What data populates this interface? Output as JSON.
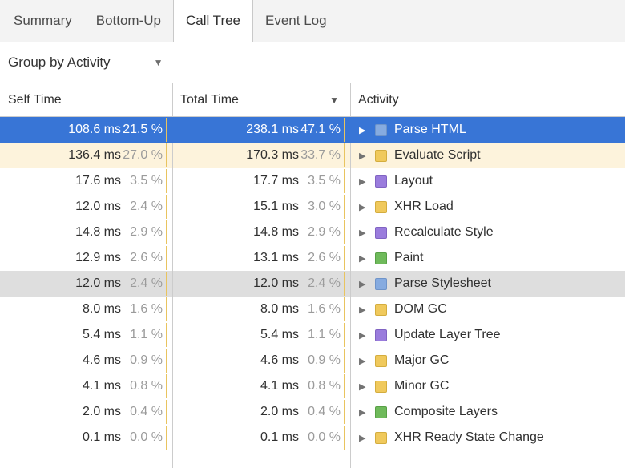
{
  "tabs": {
    "items": [
      "Summary",
      "Bottom-Up",
      "Call Tree",
      "Event Log"
    ],
    "active": "Call Tree"
  },
  "toolbar": {
    "group_by_label": "Group by Activity",
    "dropdown_arrow": "▼"
  },
  "table": {
    "columns": {
      "self_time": "Self Time",
      "total_time": "Total Time",
      "activity": "Activity"
    },
    "sort_column": "Total Time",
    "sort_arrow": "▼",
    "rows": [
      {
        "self_ms": "108.6 ms",
        "self_pct": "21.5 %",
        "total_ms": "238.1 ms",
        "total_pct": "47.1 %",
        "activity": "Parse HTML",
        "category": "loading",
        "state": "selected"
      },
      {
        "self_ms": "136.4 ms",
        "self_pct": "27.0 %",
        "total_ms": "170.3 ms",
        "total_pct": "33.7 %",
        "activity": "Evaluate Script",
        "category": "scripting",
        "state": "heavy"
      },
      {
        "self_ms": "17.6 ms",
        "self_pct": "3.5 %",
        "total_ms": "17.7 ms",
        "total_pct": "3.5 %",
        "activity": "Layout",
        "category": "rendering",
        "state": ""
      },
      {
        "self_ms": "12.0 ms",
        "self_pct": "2.4 %",
        "total_ms": "15.1 ms",
        "total_pct": "3.0 %",
        "activity": "XHR Load",
        "category": "scripting",
        "state": ""
      },
      {
        "self_ms": "14.8 ms",
        "self_pct": "2.9 %",
        "total_ms": "14.8 ms",
        "total_pct": "2.9 %",
        "activity": "Recalculate Style",
        "category": "rendering",
        "state": ""
      },
      {
        "self_ms": "12.9 ms",
        "self_pct": "2.6 %",
        "total_ms": "13.1 ms",
        "total_pct": "2.6 %",
        "activity": "Paint",
        "category": "painting",
        "state": ""
      },
      {
        "self_ms": "12.0 ms",
        "self_pct": "2.4 %",
        "total_ms": "12.0 ms",
        "total_pct": "2.4 %",
        "activity": "Parse Stylesheet",
        "category": "loading",
        "state": "hover"
      },
      {
        "self_ms": "8.0 ms",
        "self_pct": "1.6 %",
        "total_ms": "8.0 ms",
        "total_pct": "1.6 %",
        "activity": "DOM GC",
        "category": "scripting",
        "state": ""
      },
      {
        "self_ms": "5.4 ms",
        "self_pct": "1.1 %",
        "total_ms": "5.4 ms",
        "total_pct": "1.1 %",
        "activity": "Update Layer Tree",
        "category": "rendering",
        "state": ""
      },
      {
        "self_ms": "4.6 ms",
        "self_pct": "0.9 %",
        "total_ms": "4.6 ms",
        "total_pct": "0.9 %",
        "activity": "Major GC",
        "category": "scripting",
        "state": ""
      },
      {
        "self_ms": "4.1 ms",
        "self_pct": "0.8 %",
        "total_ms": "4.1 ms",
        "total_pct": "0.8 %",
        "activity": "Minor GC",
        "category": "scripting",
        "state": ""
      },
      {
        "self_ms": "2.0 ms",
        "self_pct": "0.4 %",
        "total_ms": "2.0 ms",
        "total_pct": "0.4 %",
        "activity": "Composite Layers",
        "category": "painting",
        "state": ""
      },
      {
        "self_ms": "0.1 ms",
        "self_pct": "0.0 %",
        "total_ms": "0.1 ms",
        "total_pct": "0.0 %",
        "activity": "XHR Ready State Change",
        "category": "scripting",
        "state": ""
      }
    ]
  },
  "colors": {
    "loading": "#86abe0",
    "loading_border": "#6f94c9",
    "scripting": "#f0c95c",
    "scripting_border": "#d4ad3e",
    "rendering": "#9a7cdd",
    "rendering_border": "#8063c2",
    "painting": "#6fba5b",
    "painting_border": "#58a046",
    "selection": "#3875d6",
    "heavy_row": "#fdf3dc",
    "hover_row": "#dedede",
    "percent_bar": "#e9c45f"
  }
}
